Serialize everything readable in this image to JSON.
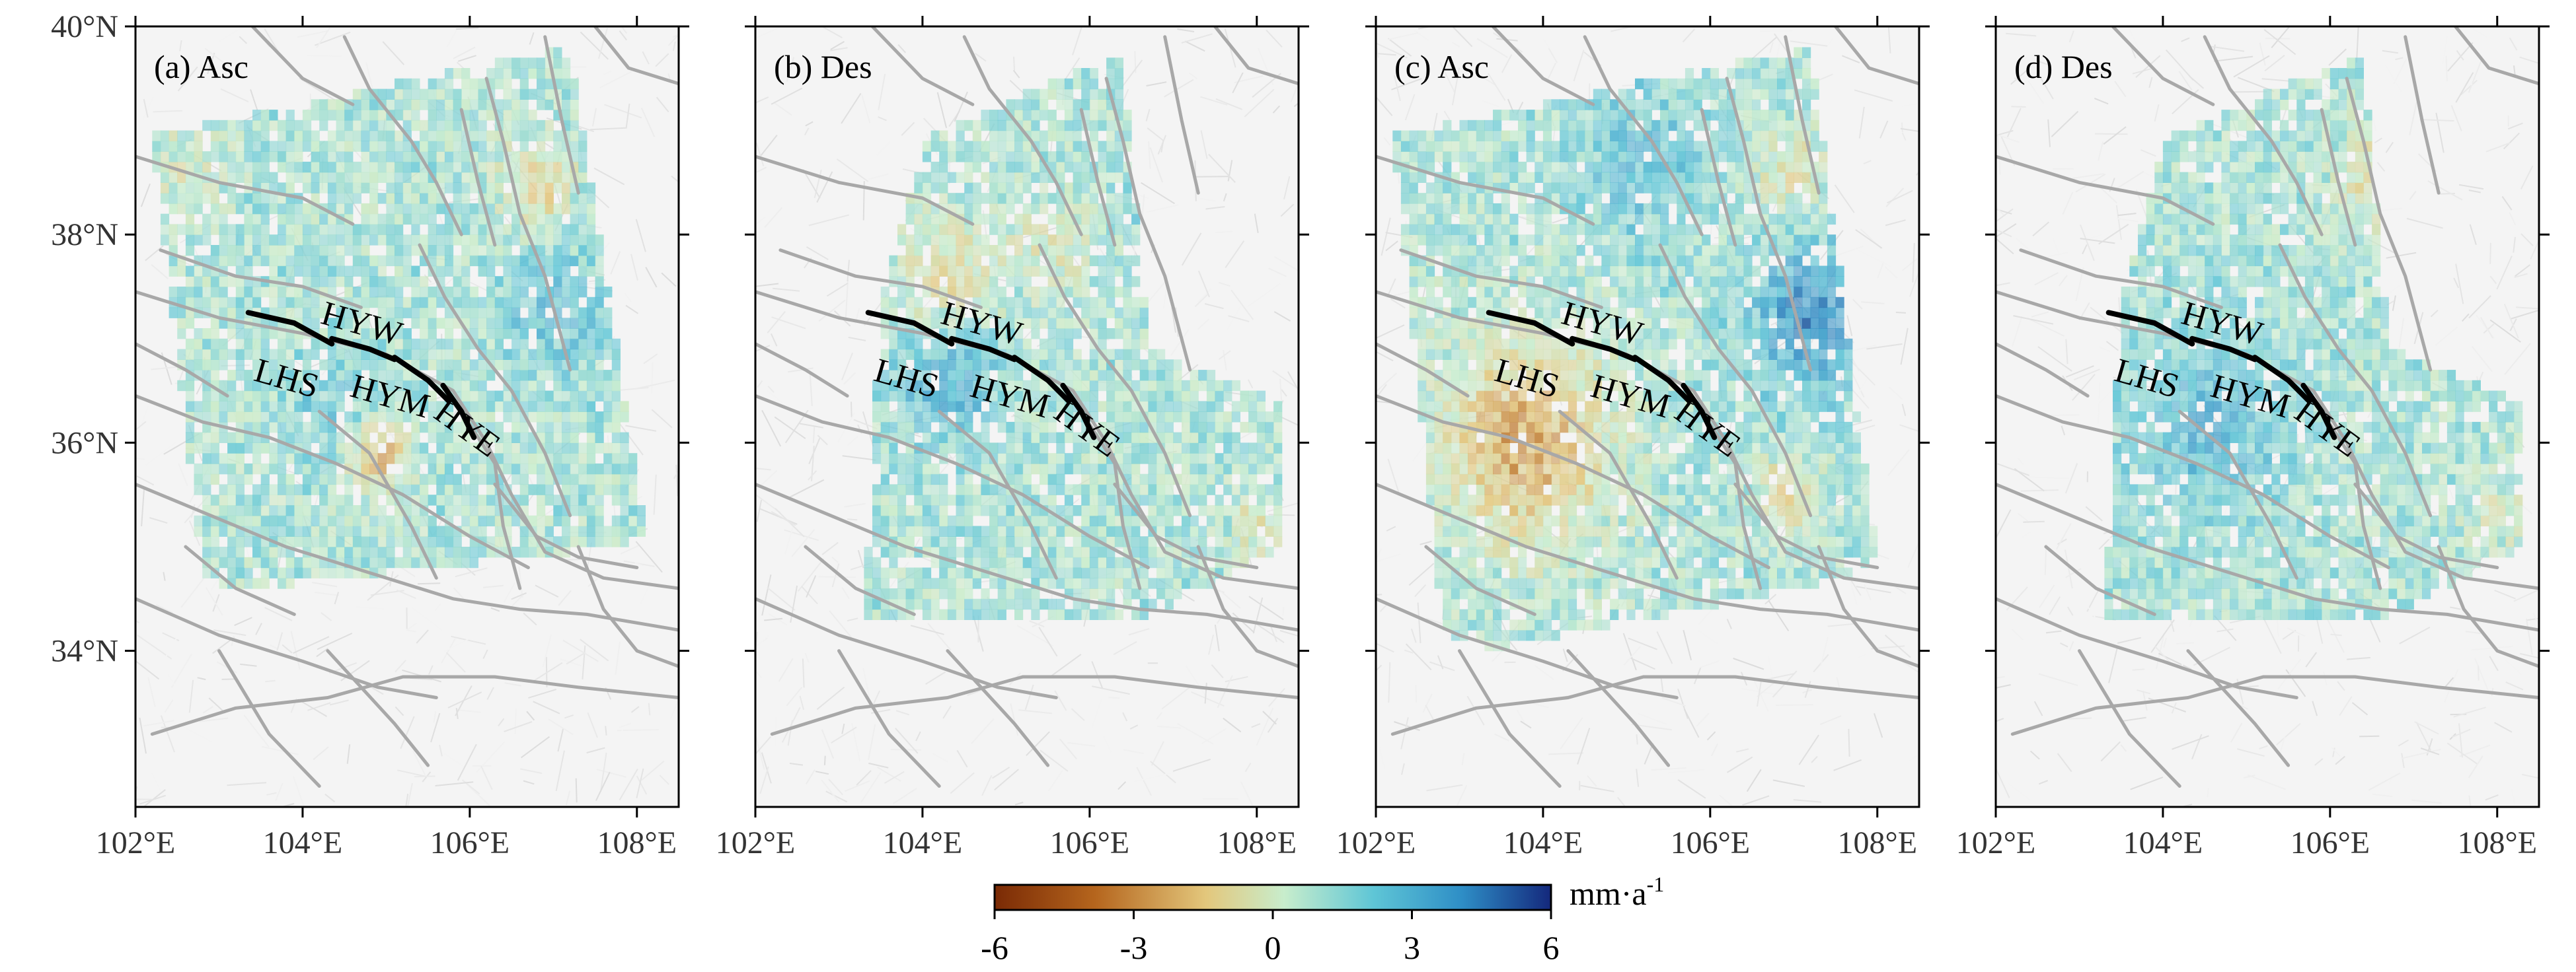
{
  "figure": {
    "lon_range": [
      102,
      108.5
    ],
    "lat_range": [
      32.5,
      40
    ],
    "x_ticks": [
      {
        "value": 102,
        "label": "102°E"
      },
      {
        "value": 104,
        "label": "104°E"
      },
      {
        "value": 106,
        "label": "106°E"
      },
      {
        "value": 108,
        "label": "108°E"
      }
    ],
    "y_ticks": [
      {
        "value": 40,
        "label": "40°N"
      },
      {
        "value": 38,
        "label": "38°N"
      },
      {
        "value": 36,
        "label": "36°N"
      },
      {
        "value": 34,
        "label": "34°N"
      }
    ],
    "panels": [
      {
        "id": "a",
        "label": "(a) Asc",
        "track": "ascending",
        "footprint": "asc_short",
        "bias": "positive_with_local_negative"
      },
      {
        "id": "b",
        "label": "(b) Des",
        "track": "descending",
        "footprint": "des",
        "bias": "positive_near_faults"
      },
      {
        "id": "c",
        "label": "(c) Asc",
        "track": "ascending",
        "footprint": "asc_long",
        "bias": "negative_southwest_positive_east"
      },
      {
        "id": "d",
        "label": "(d) Des",
        "track": "descending",
        "footprint": "des",
        "bias": "positive"
      }
    ],
    "faults": {
      "segments": [
        {
          "name": "LHS",
          "label_at": [
            103.4,
            36.6
          ]
        },
        {
          "name": "HYW",
          "label_at": [
            104.2,
            37.15
          ]
        },
        {
          "name": "HYM",
          "label_at": [
            104.55,
            36.45
          ]
        },
        {
          "name": "HYE",
          "label_at": [
            105.55,
            36.25
          ]
        }
      ],
      "color": "#000000",
      "background_fault_color": "#a8a8a8"
    }
  },
  "colorbar": {
    "unit_base": "mm·a",
    "unit_exp": "-1",
    "min": -6,
    "max": 6,
    "ticks": [
      {
        "value": -6,
        "label": "-6"
      },
      {
        "value": -3,
        "label": "-3"
      },
      {
        "value": 0,
        "label": "0"
      },
      {
        "value": 3,
        "label": "3"
      },
      {
        "value": 6,
        "label": "6"
      }
    ],
    "colors": [
      "#7a2a05",
      "#b5651d",
      "#e3c77c",
      "#c8edcc",
      "#5fc6d6",
      "#2e8ec6",
      "#14287c"
    ]
  }
}
